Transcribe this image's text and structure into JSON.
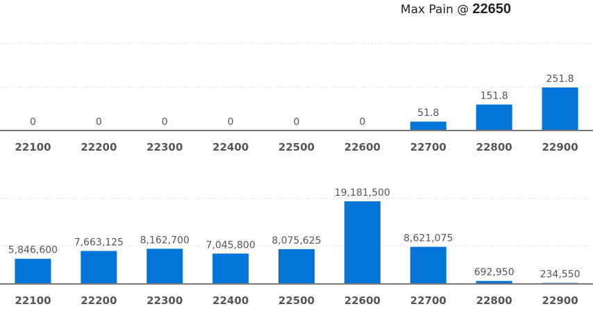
{
  "header": {
    "max_pain_label": "Max Pain @",
    "max_pain_value": "22650"
  },
  "chart_data": [
    {
      "type": "bar",
      "categories": [
        "22100",
        "22200",
        "22300",
        "22400",
        "22500",
        "22600",
        "22700",
        "22800",
        "22900"
      ],
      "values": [
        0,
        0,
        0,
        0,
        0,
        0,
        51.8,
        151.8,
        251.8
      ],
      "value_labels": [
        "0",
        "0",
        "0",
        "0",
        "0",
        "0",
        "51.8",
        "151.8",
        "251.8"
      ],
      "ylim": [
        0,
        251.8
      ],
      "grid": true,
      "color": "#0474d8"
    },
    {
      "type": "bar",
      "categories": [
        "22100",
        "22200",
        "22300",
        "22400",
        "22500",
        "22600",
        "22700",
        "22800",
        "22900"
      ],
      "values": [
        5846600,
        7663125,
        8162700,
        7045800,
        8075625,
        19181500,
        8621075,
        692950,
        234550
      ],
      "value_labels": [
        "5,846,600",
        "7,663,125",
        "8,162,700",
        "7,045,800",
        "8,075,625",
        "19,181,500",
        "8,621,075",
        "692,950",
        "234,550"
      ],
      "ylim": [
        0,
        19181500
      ],
      "grid": true,
      "color": "#0474d8"
    }
  ]
}
